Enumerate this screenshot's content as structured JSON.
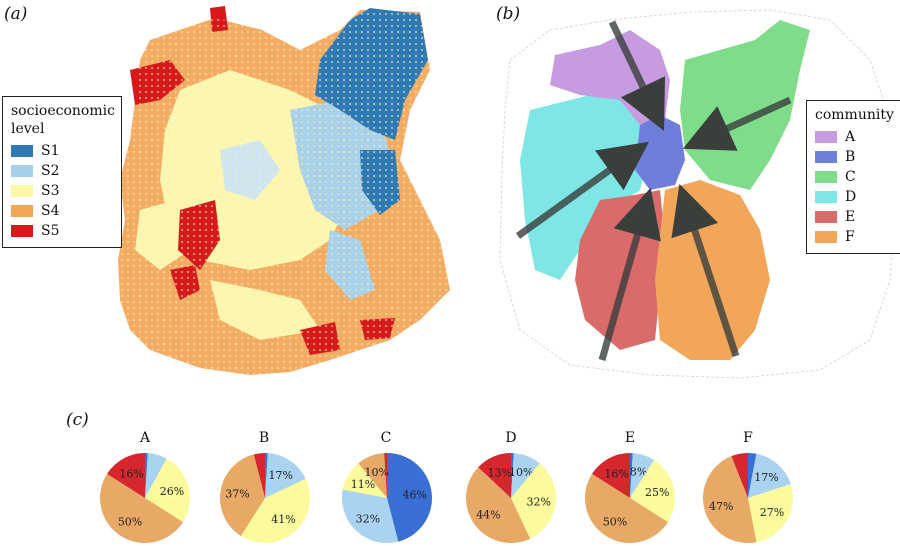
{
  "panels": {
    "a": {
      "label": "(a)"
    },
    "b": {
      "label": "(b)"
    },
    "c": {
      "label": "(c)"
    }
  },
  "legend_socio": {
    "title_line1": "socioeconomic",
    "title_line2": "level",
    "items": [
      {
        "label": "S1",
        "color": "#2f7ab5"
      },
      {
        "label": "S2",
        "color": "#a6cfe8"
      },
      {
        "label": "S3",
        "color": "#fcf7a6"
      },
      {
        "label": "S4",
        "color": "#f3a55a"
      },
      {
        "label": "S5",
        "color": "#d7191c"
      }
    ]
  },
  "legend_community": {
    "title": "community",
    "items": [
      {
        "label": "A",
        "color": "#c79bdf"
      },
      {
        "label": "B",
        "color": "#6f7ddb"
      },
      {
        "label": "C",
        "color": "#7fdc8a"
      },
      {
        "label": "D",
        "color": "#7fe6e6"
      },
      {
        "label": "E",
        "color": "#d96b6b"
      },
      {
        "label": "F",
        "color": "#f2a65a"
      }
    ]
  },
  "chart_data": {
    "type": "pie",
    "category_order": [
      "S1",
      "S2",
      "S3",
      "S4",
      "S5"
    ],
    "colors": [
      "#3a6fd6",
      "#a9d3f0",
      "#fbfa9c",
      "#e8a866",
      "#d6262e"
    ],
    "pies": [
      {
        "name": "A",
        "values": [
          1,
          7,
          26,
          50,
          16
        ],
        "labels": [
          "",
          "",
          "26%",
          "50%",
          "16%"
        ]
      },
      {
        "name": "B",
        "values": [
          1,
          17,
          41,
          37,
          4
        ],
        "labels": [
          "",
          "17%",
          "41%",
          "37%",
          ""
        ]
      },
      {
        "name": "C",
        "values": [
          46,
          32,
          11,
          10,
          1
        ],
        "labels": [
          "46%",
          "32%",
          "11%",
          "10%",
          ""
        ]
      },
      {
        "name": "D",
        "values": [
          1,
          10,
          32,
          44,
          13
        ],
        "labels": [
          "",
          "10%",
          "32%",
          "44%",
          "13%"
        ]
      },
      {
        "name": "E",
        "values": [
          1,
          8,
          25,
          50,
          16
        ],
        "labels": [
          "",
          "8%",
          "25%",
          "50%",
          "16%"
        ]
      },
      {
        "name": "F",
        "values": [
          3,
          17,
          27,
          47,
          6
        ],
        "labels": [
          "",
          "17%",
          "27%",
          "47%",
          ""
        ]
      }
    ]
  }
}
